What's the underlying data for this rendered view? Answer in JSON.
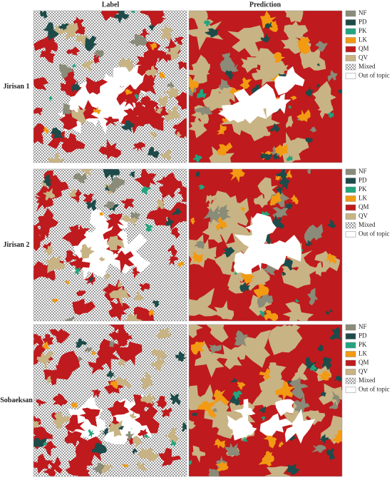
{
  "columns": [
    "Label",
    "Prediction"
  ],
  "rows": [
    "Jirisan 1",
    "Jirisan 2",
    "Sobaeksan"
  ],
  "legend": {
    "items": [
      {
        "name": "NF",
        "color": "#8a8b78"
      },
      {
        "name": "PD",
        "color": "#1d4b49"
      },
      {
        "name": "PK",
        "color": "#22a57e"
      },
      {
        "name": "LK",
        "color": "#f29a12"
      },
      {
        "name": "QM",
        "color": "#bf1a1d"
      },
      {
        "name": "QV",
        "color": "#c8b384"
      },
      {
        "name": "Mixed",
        "pattern": "checker"
      },
      {
        "name": "Out of topic",
        "color": "#ffffff"
      }
    ]
  }
}
